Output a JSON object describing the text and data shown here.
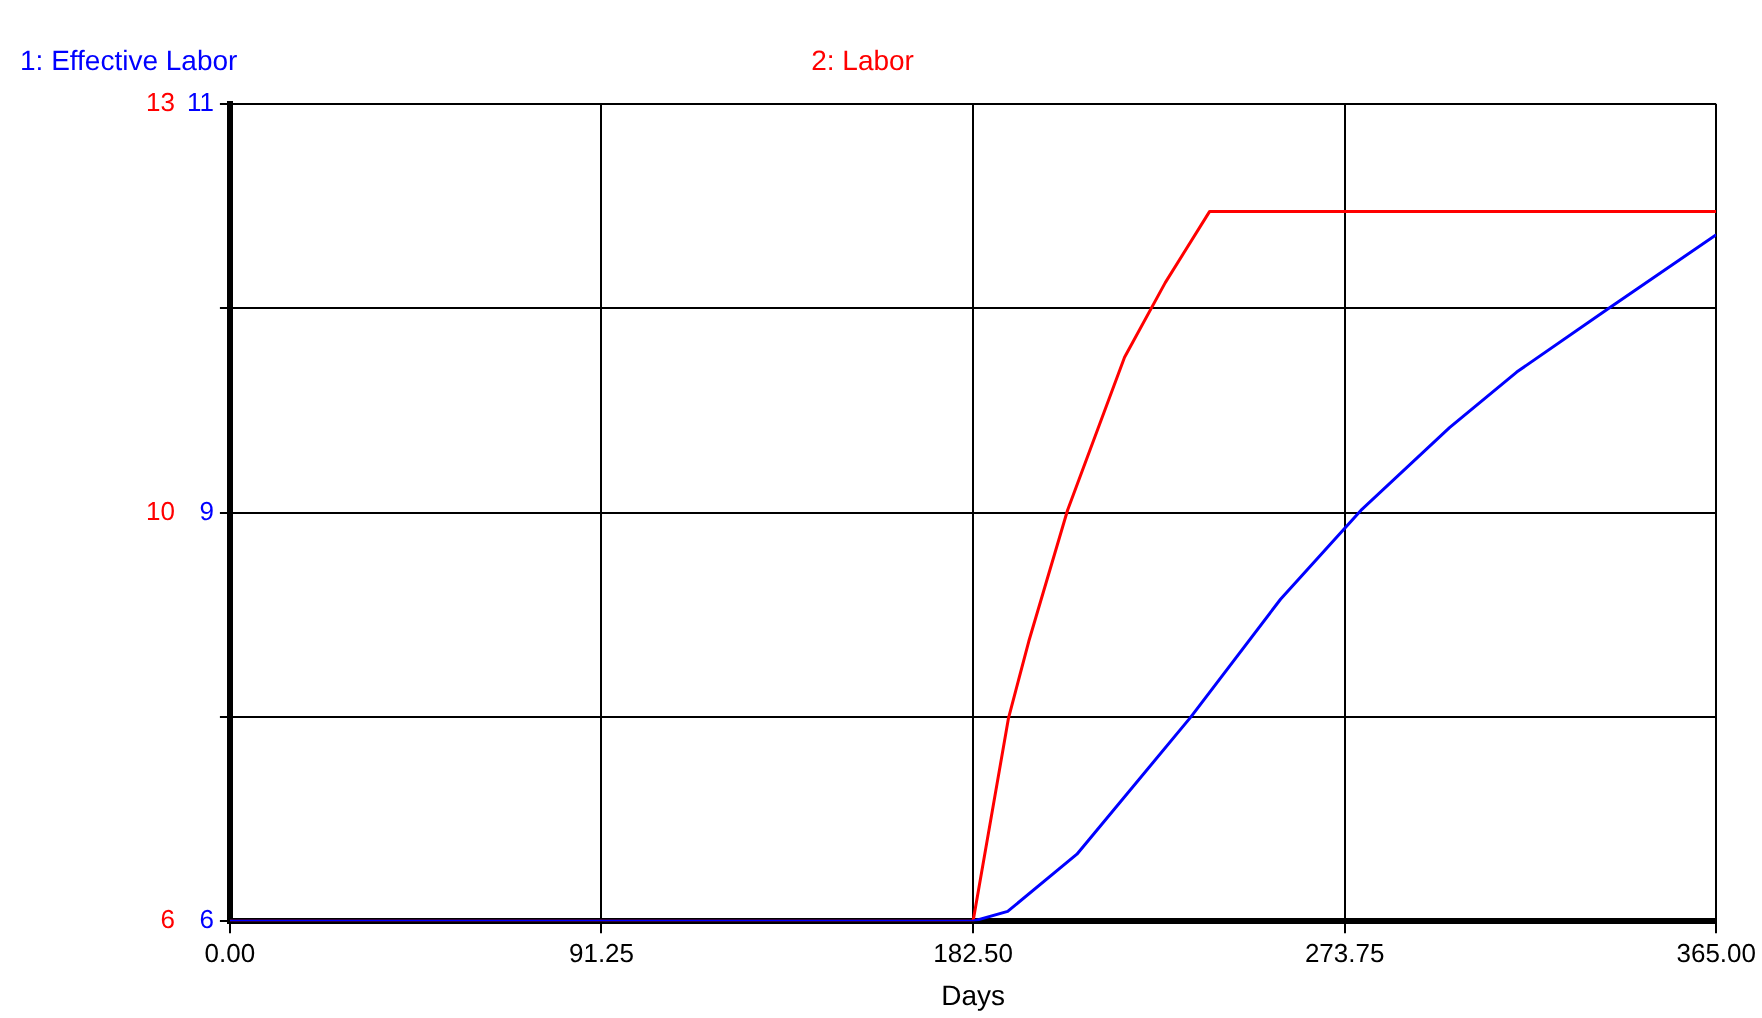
{
  "chart_data": {
    "type": "line",
    "xlabel": "Days",
    "xlim": [
      0,
      365
    ],
    "xticks": [
      {
        "value": 0,
        "label": "0.00"
      },
      {
        "value": 91.25,
        "label": "91.25"
      },
      {
        "value": 182.5,
        "label": "182.50"
      },
      {
        "value": 273.75,
        "label": "273.75"
      },
      {
        "value": 365,
        "label": "365.00"
      }
    ],
    "ylim": [
      6,
      11
    ],
    "yticks": [
      6,
      {
        "value": 7.25,
        "label": null
      },
      {
        "value": 8.5,
        "label": "9"
      },
      {
        "value": 9.75,
        "label": null
      },
      11
    ],
    "y2lim": [
      6,
      13
    ],
    "y2ticks": [
      6,
      {
        "value": 7.75,
        "label": null
      },
      {
        "value": 9.5,
        "label": "10"
      },
      {
        "value": 11.25,
        "label": null
      },
      13
    ],
    "grid": true,
    "legend": "top",
    "marker": "none",
    "line_style": "solid",
    "series": [
      {
        "name": "1: Effective Labor",
        "color": "#0000ff",
        "x": [
          0,
          182.5,
          191,
          208,
          236,
          258,
          278,
          299.5,
          316,
          338,
          365
        ],
        "values": [
          6,
          6,
          6.06,
          6.41,
          7.25,
          7.97,
          8.52,
          9.02,
          9.36,
          9.74,
          10.2
        ]
      },
      {
        "name": "2: Labor",
        "color": "#ff0000",
        "axis": "y2",
        "x": [
          0,
          182.5,
          191.2,
          196.2,
          205.7,
          219.7,
          229.7,
          240.6,
          365
        ],
        "values": [
          6,
          6,
          7.74,
          8.4,
          9.52,
          10.83,
          11.47,
          12.08,
          12.08
        ]
      }
    ]
  }
}
